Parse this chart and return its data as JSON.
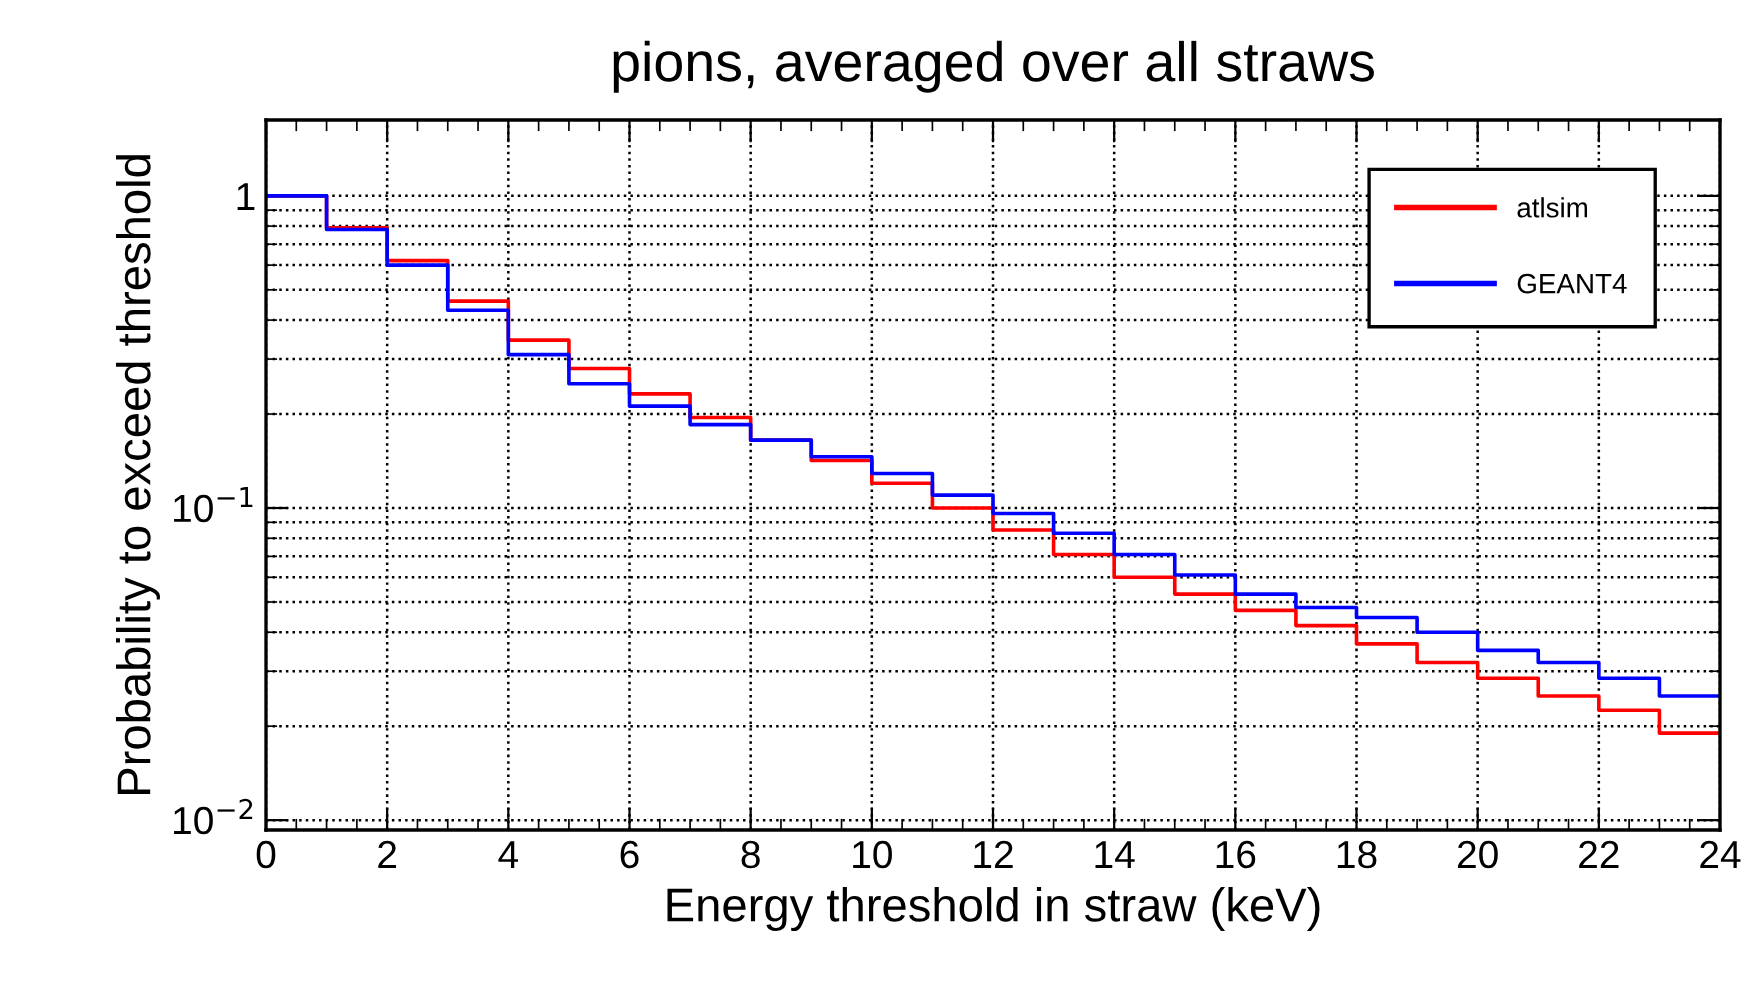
{
  "chart_data": {
    "type": "step",
    "title": "pions, averaged over all straws",
    "xlabel": "Energy threshold in straw (keV)",
    "ylabel": "Probability to exceed threshold",
    "x": [
      0,
      1,
      2,
      3,
      4,
      5,
      6,
      7,
      8,
      9,
      10,
      11,
      12,
      13,
      14,
      15,
      16,
      17,
      18,
      19,
      20,
      21,
      22,
      23,
      24
    ],
    "series": [
      {
        "name": "atlsim",
        "color": "#ff0000",
        "values": [
          1.0,
          0.79,
          0.62,
          0.46,
          0.345,
          0.28,
          0.232,
          0.195,
          0.165,
          0.142,
          0.12,
          0.1,
          0.085,
          0.071,
          0.06,
          0.053,
          0.047,
          0.042,
          0.0367,
          0.032,
          0.0285,
          0.025,
          0.0225,
          0.019,
          0.019
        ]
      },
      {
        "name": "GEANT4",
        "color": "#0000ff",
        "values": [
          1.0,
          0.78,
          0.6,
          0.43,
          0.31,
          0.25,
          0.212,
          0.185,
          0.165,
          0.146,
          0.129,
          0.11,
          0.096,
          0.083,
          0.071,
          0.061,
          0.053,
          0.048,
          0.0446,
          0.04,
          0.035,
          0.032,
          0.0285,
          0.025,
          0.025
        ]
      }
    ],
    "log": "y",
    "xlim": [
      0,
      24
    ],
    "ylim": [
      0.0093,
      1.75
    ],
    "xticks": [
      0,
      2,
      4,
      6,
      8,
      10,
      12,
      14,
      16,
      18,
      20,
      22,
      24
    ],
    "yticks": [
      {
        "value": 0.01,
        "label": "10$^{−2}$"
      },
      {
        "value": 0.1,
        "label": "10$^{−1}$"
      },
      1
    ],
    "grid": true,
    "legend": "top right"
  }
}
